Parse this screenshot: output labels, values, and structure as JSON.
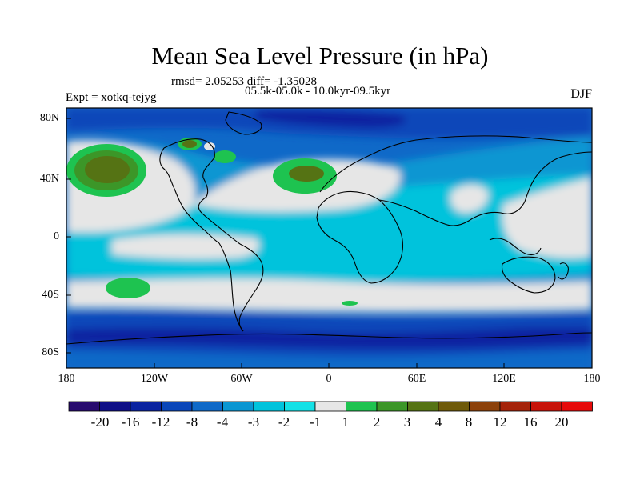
{
  "title": "Mean Sea Level Pressure (in hPa)",
  "stats": {
    "rmsd": "rmsd= 2.05253 diff= -1.35028",
    "period": "05.5k-05.0k - 10.0kyr-09.5kyr",
    "expt": "Expt = xotkq-tejyg",
    "season": "DJF"
  },
  "axes": {
    "lat_ticks": [
      "80N",
      "40N",
      "0",
      "40S",
      "80S"
    ],
    "lon_ticks": [
      "180",
      "120W",
      "60W",
      "0",
      "60E",
      "120E",
      "180"
    ]
  },
  "colorbar": {
    "colors": [
      "#280b6e",
      "#0f0f87",
      "#0a23a0",
      "#0a46b9",
      "#0f69c8",
      "#0a96d2",
      "#00c3dc",
      "#14e1e6",
      "#e6e6e6",
      "#1ec350",
      "#3c9628",
      "#557314",
      "#6e5a0a",
      "#8c410a",
      "#a5230a",
      "#c8140a",
      "#e60a0a"
    ],
    "labels": [
      "-20",
      "-16",
      "-12",
      "-8",
      "-4",
      "-3",
      "-2",
      "-1",
      "1",
      "2",
      "3",
      "4",
      "8",
      "12",
      "16",
      "20"
    ]
  }
}
